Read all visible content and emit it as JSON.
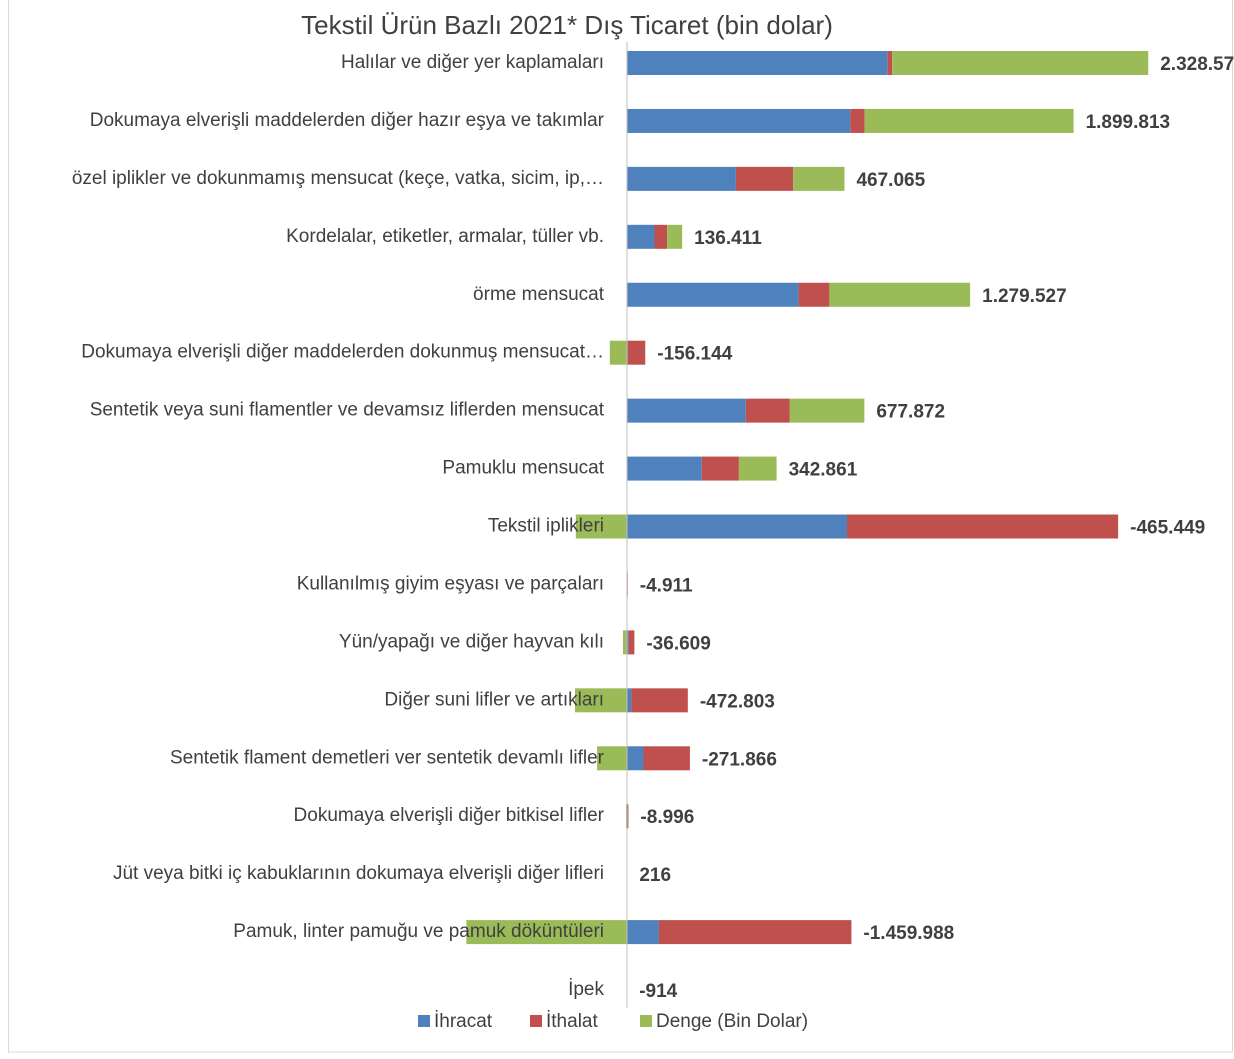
{
  "chart_data": {
    "type": "stacked_barh",
    "title": "Tekstil Ürün Bazlı 2021* Dış Ticaret (bin dolar)",
    "categories": [
      "Halılar ve diğer yer kaplamaları",
      "Dokumaya elverişli maddelerden diğer hazır eşya ve takımlar",
      "özel iplikler ve dokunmamış mensucat (keçe, vatka, sicim, ip,…",
      "Kordelalar, etiketler, armalar, tüller vb.",
      "örme mensucat",
      "Dokumaya elverişli diğer maddelerden dokunmuş mensucat…",
      "Sentetik veya suni flamentler ve devamsız liflerden mensucat",
      "Pamuklu mensucat",
      "Tekstil iplikleri",
      "Kullanılmış giyim eşyası ve parçaları",
      "Yün/yapağı ve diğer hayvan kılı",
      "Diğer suni lifler ve artıkları",
      "Sentetik flament demetleri ver sentetik devamlı lifler",
      "Dokumaya elverişli diğer bitkisel lifler",
      "Jüt veya bitki iç kabuklarının dokumaya elverişli diğer lifleri",
      "Pamuk, linter pamuğu ve pamuk döküntüleri",
      "İpek"
    ],
    "series": [
      {
        "name": "İhracat",
        "color": "#4f81bd",
        "values": [
          2370000,
          2030000,
          990000,
          250000,
          1560000,
          5000,
          1080000,
          680000,
          2000000,
          1000,
          15000,
          40000,
          150000,
          2000,
          1500,
          290000,
          500
        ]
      },
      {
        "name": "İthalat",
        "color": "#c0504d",
        "values": [
          40000,
          130000,
          520000,
          115000,
          280000,
          161000,
          400000,
          337000,
          2465000,
          6000,
          52000,
          513000,
          422000,
          11000,
          1284,
          1750000,
          1414
        ]
      },
      {
        "name": "Denge (Bin Dolar)",
        "color": "#9bbb59",
        "values": [
          2328571,
          1899813,
          467065,
          136411,
          1279527,
          -156144,
          677872,
          342861,
          -465449,
          -4911,
          -36609,
          -472803,
          -271866,
          -8996,
          216,
          -1459988,
          -914
        ],
        "value_labels": [
          "2.328.571",
          "1.899.813",
          "467.065",
          "136.411",
          "1.279.527",
          "-156.144",
          "677.872",
          "342.861",
          "-465.449",
          "-4.911",
          "-36.609",
          "-472.803",
          "-271.866",
          "-8.996",
          "216",
          "-1.459.988",
          "-914"
        ]
      }
    ],
    "xlim": [
      -3000000,
      5000000
    ],
    "legend": "bottom"
  }
}
